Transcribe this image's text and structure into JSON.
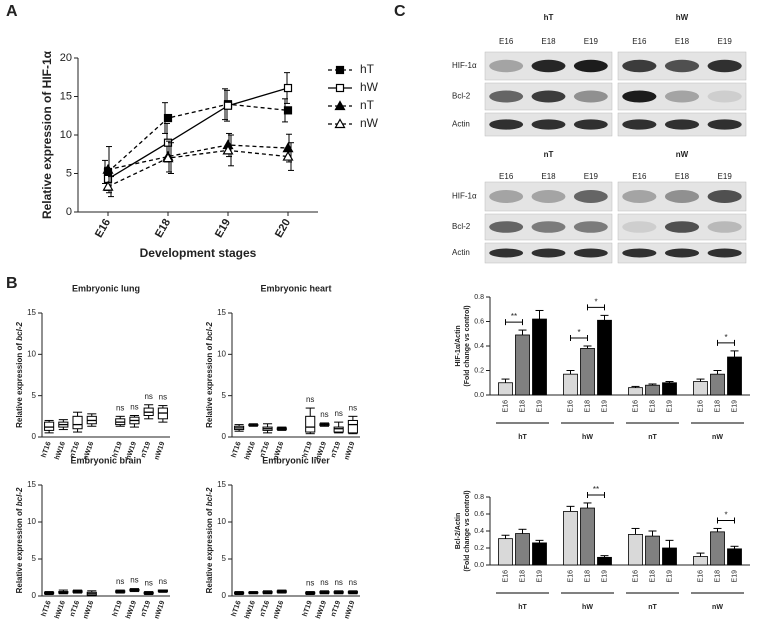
{
  "panel_labels": {
    "a": "A",
    "b": "B",
    "c": "C"
  },
  "blots": [
    {
      "groups": [
        "hT",
        "hW"
      ],
      "lanes": [
        "E16",
        "E18",
        "E19"
      ],
      "rows": [
        "HIF-1α",
        "Bcl-2",
        "Actin"
      ]
    },
    {
      "groups": [
        "nT",
        "nW"
      ],
      "lanes": [
        "E16",
        "E18",
        "E19"
      ],
      "rows": [
        "HIF-1α",
        "Bcl-2",
        "Actin"
      ]
    }
  ],
  "chart_data": [
    {
      "type": "line",
      "ylabel": "Relative expression of HIF-1α",
      "xlabel": "Development stages",
      "categories": [
        "E16",
        "E18",
        "E19",
        "E20"
      ],
      "ylim": [
        0,
        20
      ],
      "yticks": [
        0,
        5,
        10,
        15,
        20
      ],
      "series": [
        {
          "name": "hT",
          "marker": "square-filled",
          "dash": true,
          "color": "#000000",
          "values": [
            5.2,
            12.2,
            14.0,
            13.2
          ],
          "errors": [
            1.5,
            2.0,
            2.0,
            1.5
          ]
        },
        {
          "name": "hW",
          "marker": "square-open",
          "dash": false,
          "color": "#000000",
          "values": [
            4.3,
            9.0,
            13.8,
            16.1
          ],
          "errors": [
            1.5,
            2.5,
            2.0,
            2.0
          ]
        },
        {
          "name": "nT",
          "marker": "triangle-filled",
          "dash": true,
          "color": "#000000",
          "values": [
            5.5,
            7.2,
            8.7,
            8.3
          ],
          "errors": [
            3.0,
            2.0,
            1.5,
            1.8
          ]
        },
        {
          "name": "nW",
          "marker": "triangle-open",
          "dash": true,
          "color": "#000000",
          "values": [
            3.3,
            7.0,
            8.0,
            7.2
          ],
          "errors": [
            1.3,
            2.0,
            2.0,
            1.8
          ]
        }
      ]
    },
    {
      "type": "box",
      "title": "Embryonic lung",
      "ylabel": [
        "Relative expression of ",
        "bcl-2"
      ],
      "categories": [
        "hT16",
        "hW16",
        "nT16",
        "nW16",
        null,
        "hT19",
        "hW19",
        "nT19",
        "nW19"
      ],
      "ylim": [
        0,
        15
      ],
      "yticks": [
        0,
        5,
        10,
        15
      ],
      "boxes": [
        [
          0.5,
          0.8,
          1.2,
          1.8,
          2.0
        ],
        [
          0.9,
          1.2,
          1.5,
          1.8,
          2.1
        ],
        [
          0.6,
          1.0,
          1.5,
          2.5,
          3.0
        ],
        [
          1.3,
          1.6,
          2.0,
          2.5,
          2.8
        ],
        null,
        [
          1.3,
          1.5,
          1.8,
          2.2,
          2.5
        ],
        [
          1.2,
          1.6,
          2.0,
          2.4,
          2.6
        ],
        [
          2.2,
          2.6,
          3.0,
          3.5,
          3.9
        ],
        [
          1.8,
          2.2,
          2.9,
          3.5,
          3.8
        ]
      ],
      "annotations": [
        null,
        null,
        null,
        null,
        null,
        "ns",
        "ns",
        "ns",
        "ns"
      ]
    },
    {
      "type": "box",
      "title": "Embryonic heart",
      "ylabel": [
        "Relative expression of ",
        "bcl-2"
      ],
      "categories": [
        "hT16",
        "hW16",
        "nT16",
        "nW16",
        null,
        "hT19",
        "hW19",
        "nT19",
        "nW19"
      ],
      "ylim": [
        0,
        15
      ],
      "yticks": [
        0,
        5,
        10,
        15
      ],
      "boxes": [
        [
          0.7,
          0.9,
          1.1,
          1.3,
          1.5
        ],
        [
          1.3,
          1.4,
          1.45,
          1.5,
          1.6
        ],
        [
          0.5,
          0.8,
          1.0,
          1.2,
          1.6
        ],
        [
          0.8,
          0.9,
          1.0,
          1.1,
          1.2
        ],
        null,
        [
          0.4,
          0.6,
          1.2,
          2.5,
          3.5
        ],
        [
          1.3,
          1.4,
          1.5,
          1.6,
          1.7
        ],
        [
          0.5,
          0.6,
          1.0,
          1.2,
          1.8
        ],
        [
          0.4,
          0.5,
          1.5,
          2.0,
          2.5
        ]
      ],
      "annotations": [
        null,
        null,
        null,
        null,
        null,
        "ns",
        "ns",
        "ns",
        "ns"
      ]
    },
    {
      "type": "box",
      "title": "Embryonic brain",
      "ylabel": [
        "Relative expression of ",
        "bcl-2"
      ],
      "categories": [
        "hT16",
        "hW16",
        "nT16",
        "nW16",
        null,
        "hT19",
        "hW19",
        "nT19",
        "nW19"
      ],
      "ylim": [
        0,
        15
      ],
      "yticks": [
        0,
        5,
        10,
        15
      ],
      "boxes": [
        [
          0.2,
          0.3,
          0.4,
          0.5,
          0.6
        ],
        [
          0.3,
          0.4,
          0.5,
          0.6,
          0.8
        ],
        [
          0.4,
          0.5,
          0.6,
          0.7,
          0.8
        ],
        [
          0.0,
          0.1,
          0.3,
          0.5,
          0.7
        ],
        null,
        [
          0.4,
          0.5,
          0.6,
          0.7,
          0.8
        ],
        [
          0.6,
          0.7,
          0.8,
          0.9,
          1.0
        ],
        [
          0.2,
          0.3,
          0.4,
          0.5,
          0.6
        ],
        [
          0.5,
          0.6,
          0.7,
          0.8,
          0.8
        ]
      ],
      "annotations": [
        null,
        null,
        null,
        null,
        null,
        "ns",
        "ns",
        "ns",
        "ns"
      ]
    },
    {
      "type": "box",
      "title": "Embryonic liver",
      "ylabel": [
        "Relative expression of ",
        "bcl-2"
      ],
      "categories": [
        "hT16",
        "hW16",
        "nT16",
        "nW16",
        null,
        "hT19",
        "hW19",
        "nT19",
        "nW19"
      ],
      "ylim": [
        0,
        15
      ],
      "yticks": [
        0,
        5,
        10,
        15
      ],
      "boxes": [
        [
          0.2,
          0.3,
          0.4,
          0.5,
          0.6
        ],
        [
          0.3,
          0.4,
          0.45,
          0.5,
          0.6
        ],
        [
          0.3,
          0.4,
          0.5,
          0.6,
          0.7
        ],
        [
          0.4,
          0.5,
          0.6,
          0.7,
          0.8
        ],
        null,
        [
          0.2,
          0.3,
          0.4,
          0.5,
          0.6
        ],
        [
          0.3,
          0.4,
          0.5,
          0.6,
          0.7
        ],
        [
          0.3,
          0.4,
          0.5,
          0.6,
          0.7
        ],
        [
          0.3,
          0.4,
          0.5,
          0.6,
          0.7
        ]
      ],
      "annotations": [
        null,
        null,
        null,
        null,
        null,
        "ns",
        "ns",
        "ns",
        "ns"
      ]
    },
    {
      "type": "bar",
      "ylabel": [
        "HIF-1α/Actin",
        "(Fold change vs control)"
      ],
      "categories": [
        "E16",
        "E18",
        "E19",
        "E16",
        "E18",
        "E19",
        "E16",
        "E18",
        "E19",
        "E16",
        "E18",
        "E19"
      ],
      "groups": [
        "hT",
        "hW",
        "nT",
        "nW"
      ],
      "colors": [
        "#d9d9d9",
        "#808080",
        "#000000"
      ],
      "values": [
        0.1,
        0.49,
        0.62,
        0.17,
        0.38,
        0.61,
        0.06,
        0.08,
        0.1,
        0.11,
        0.17,
        0.31
      ],
      "errors": [
        0.03,
        0.04,
        0.07,
        0.03,
        0.02,
        0.04,
        0.01,
        0.01,
        0.01,
        0.02,
        0.03,
        0.05
      ],
      "ylim": [
        0,
        0.8
      ],
      "yticks": [
        {
          "value": 0,
          "label": "0.0"
        },
        0.2,
        0.4,
        0.6,
        0.8
      ],
      "significance": [
        {
          "pair": [
            0,
            1
          ],
          "label": "**"
        },
        {
          "pair": [
            3,
            4
          ],
          "label": "*"
        },
        {
          "pair": [
            4,
            5
          ],
          "label": "*"
        },
        {
          "pair": [
            10,
            11
          ],
          "label": "*"
        }
      ]
    },
    {
      "type": "bar",
      "ylabel": [
        "Bcl-2/Actin",
        "(Fold change vs control)"
      ],
      "categories": [
        "E16",
        "E18",
        "E19",
        "E16",
        "E18",
        "E19",
        "E16",
        "E18",
        "E19",
        "E16",
        "E18",
        "E19"
      ],
      "groups": [
        "hT",
        "hW",
        "nT",
        "nW"
      ],
      "colors": [
        "#d9d9d9",
        "#808080",
        "#000000"
      ],
      "values": [
        0.31,
        0.37,
        0.26,
        0.63,
        0.67,
        0.09,
        0.36,
        0.34,
        0.2,
        0.1,
        0.39,
        0.19
      ],
      "errors": [
        0.04,
        0.05,
        0.03,
        0.06,
        0.06,
        0.02,
        0.07,
        0.06,
        0.09,
        0.04,
        0.04,
        0.03
      ],
      "ylim": [
        0,
        0.8
      ],
      "yticks": [
        {
          "value": 0,
          "label": "0.0"
        },
        0.2,
        0.4,
        0.6,
        0.8
      ],
      "significance": [
        {
          "pair": [
            4,
            5
          ],
          "label": "**"
        },
        {
          "pair": [
            10,
            11
          ],
          "label": "*"
        }
      ]
    }
  ]
}
